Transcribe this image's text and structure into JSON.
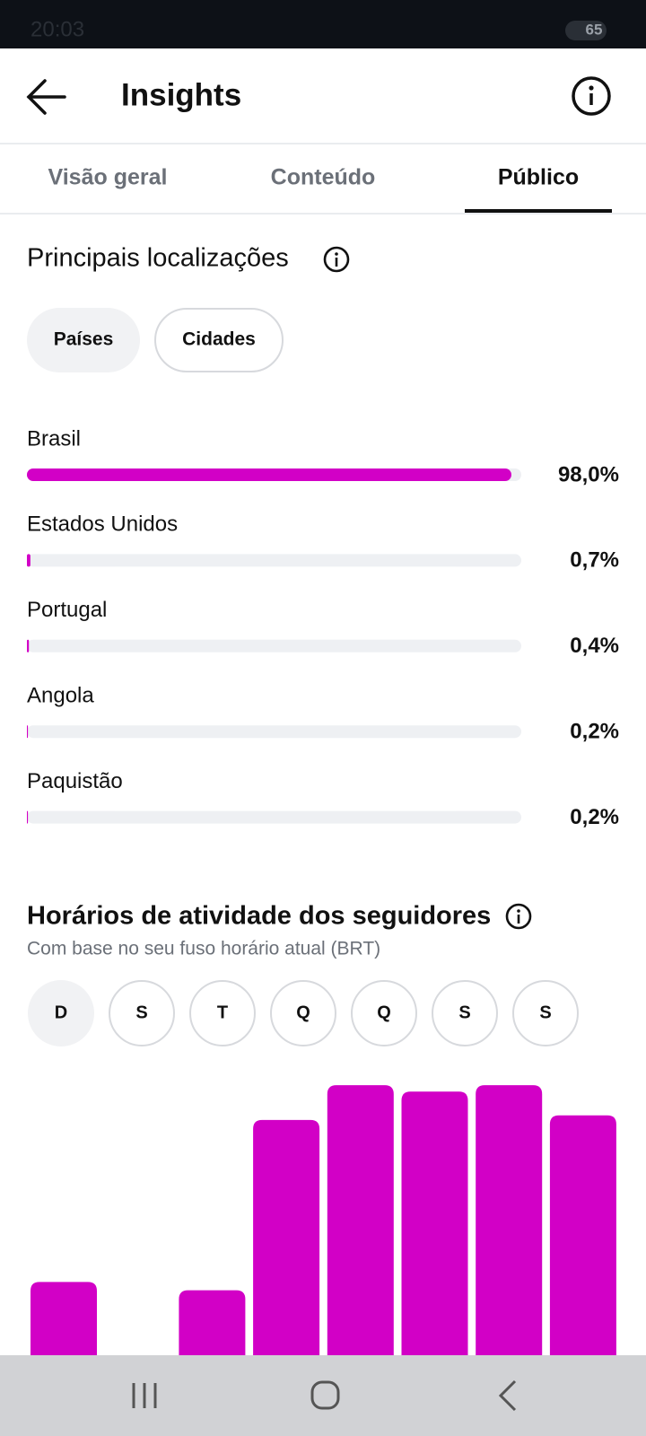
{
  "status_bar": {
    "time": "20:03",
    "battery": "65"
  },
  "header": {
    "title": "Insights"
  },
  "tabs": [
    "Visão geral",
    "Conteúdo",
    "Público"
  ],
  "location_filters": [
    "Países",
    "Cidades"
  ],
  "day_filters": [
    "D",
    "S",
    "T",
    "Q",
    "Q",
    "S",
    "S"
  ],
  "chart_data": [
    {
      "type": "hbar",
      "title": "Principais localizações",
      "categories": [
        "Brasil",
        "Estados Unidos",
        "Portugal",
        "Angola",
        "Paquistão"
      ],
      "values": [
        98.0,
        0.7,
        0.4,
        0.2,
        0.2
      ],
      "value_labels": [
        "98,0%",
        "0,7%",
        "0,4%",
        "0,2%",
        "0,2%"
      ],
      "color": "#d200c6",
      "xlim": [
        0,
        100
      ]
    },
    {
      "type": "bar",
      "title": "Horários de atividade dos seguidores",
      "subtitle": "Com base no seu fuso horário atual (BRT)",
      "categories": [
        null,
        null,
        null,
        null,
        null,
        null,
        null,
        null
      ],
      "values": [
        80,
        0,
        71,
        257,
        295,
        288,
        295,
        262
      ],
      "color": "#d200c6",
      "ylim": [
        0,
        300
      ]
    }
  ]
}
